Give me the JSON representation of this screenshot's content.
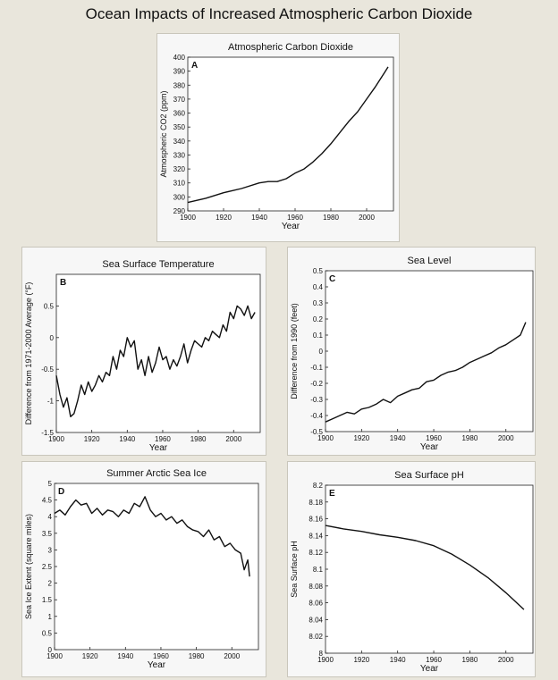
{
  "page_title": "Ocean Impacts of Increased Atmospheric Carbon Dioxide",
  "colors": {
    "background": "#e9e6dc",
    "panel": "#f7f7f7",
    "plot": "#ffffff",
    "line": "#111111"
  },
  "chart_data": [
    {
      "id": "A",
      "type": "line",
      "title": "Atmospheric Carbon Dioxide",
      "xlabel": "Year",
      "ylabel": "Atmospheric CO2 (ppm)",
      "xlim": [
        1900,
        2015
      ],
      "ylim": [
        290,
        400
      ],
      "xticks": [
        1900,
        1920,
        1940,
        1960,
        1980,
        2000
      ],
      "yticks": [
        290,
        300,
        310,
        320,
        330,
        340,
        350,
        360,
        370,
        380,
        390,
        400
      ],
      "series": [
        {
          "x": [
            1900,
            1910,
            1920,
            1930,
            1940,
            1945,
            1950,
            1955,
            1960,
            1965,
            1970,
            1975,
            1980,
            1985,
            1990,
            1995,
            2000,
            2005,
            2010,
            2012
          ],
          "values": [
            296,
            299,
            303,
            306,
            310,
            311,
            311,
            313,
            317,
            320,
            325,
            331,
            338,
            346,
            354,
            361,
            370,
            379,
            389,
            393
          ]
        }
      ]
    },
    {
      "id": "B",
      "type": "line",
      "title": "Sea Surface Temperature",
      "xlabel": "Year",
      "ylabel": "Difference from 1971-2000 Average (°F)",
      "xlim": [
        1900,
        2015
      ],
      "ylim": [
        -1.5,
        1.0
      ],
      "xticks": [
        1900,
        1920,
        1940,
        1960,
        1980,
        2000
      ],
      "yticks": [
        -1.5,
        -1,
        -0.5,
        0,
        0.5
      ],
      "series": [
        {
          "x": [
            1900,
            1902,
            1904,
            1906,
            1908,
            1910,
            1912,
            1914,
            1916,
            1918,
            1920,
            1922,
            1924,
            1926,
            1928,
            1930,
            1932,
            1934,
            1936,
            1938,
            1940,
            1942,
            1944,
            1946,
            1948,
            1950,
            1952,
            1954,
            1956,
            1958,
            1960,
            1962,
            1964,
            1966,
            1968,
            1970,
            1972,
            1974,
            1976,
            1978,
            1980,
            1982,
            1984,
            1986,
            1988,
            1990,
            1992,
            1994,
            1996,
            1998,
            2000,
            2002,
            2004,
            2006,
            2008,
            2010,
            2012
          ],
          "values": [
            -0.6,
            -0.9,
            -1.1,
            -0.95,
            -1.25,
            -1.2,
            -1.0,
            -0.75,
            -0.9,
            -0.7,
            -0.85,
            -0.75,
            -0.6,
            -0.7,
            -0.55,
            -0.6,
            -0.3,
            -0.5,
            -0.2,
            -0.3,
            0.0,
            -0.15,
            -0.05,
            -0.5,
            -0.35,
            -0.6,
            -0.3,
            -0.55,
            -0.4,
            -0.15,
            -0.35,
            -0.3,
            -0.5,
            -0.35,
            -0.45,
            -0.3,
            -0.1,
            -0.4,
            -0.2,
            -0.05,
            -0.1,
            -0.15,
            0.0,
            -0.05,
            0.1,
            0.05,
            0.0,
            0.2,
            0.1,
            0.4,
            0.3,
            0.5,
            0.45,
            0.35,
            0.5,
            0.3,
            0.4
          ]
        }
      ]
    },
    {
      "id": "C",
      "type": "line",
      "title": "Sea Level",
      "xlabel": "Year",
      "ylabel": "Difference from 1990 (feet)",
      "xlim": [
        1900,
        2015
      ],
      "ylim": [
        -0.5,
        0.5
      ],
      "xticks": [
        1900,
        1920,
        1940,
        1960,
        1980,
        2000
      ],
      "yticks": [
        -0.5,
        -0.4,
        -0.3,
        -0.2,
        -0.1,
        0,
        0.1,
        0.2,
        0.3,
        0.4,
        0.5
      ],
      "series": [
        {
          "x": [
            1900,
            1904,
            1908,
            1912,
            1916,
            1920,
            1924,
            1928,
            1932,
            1936,
            1940,
            1944,
            1948,
            1952,
            1956,
            1960,
            1964,
            1968,
            1972,
            1976,
            1980,
            1984,
            1988,
            1992,
            1996,
            2000,
            2004,
            2008,
            2011
          ],
          "values": [
            -0.44,
            -0.42,
            -0.4,
            -0.38,
            -0.39,
            -0.36,
            -0.35,
            -0.33,
            -0.3,
            -0.32,
            -0.28,
            -0.26,
            -0.24,
            -0.23,
            -0.19,
            -0.18,
            -0.15,
            -0.13,
            -0.12,
            -0.1,
            -0.07,
            -0.05,
            -0.03,
            -0.01,
            0.02,
            0.04,
            0.07,
            0.1,
            0.18
          ]
        }
      ]
    },
    {
      "id": "D",
      "type": "line",
      "title": "Summer Arctic Sea Ice",
      "xlabel": "Year",
      "ylabel": "Sea Ice Extent (square miles)",
      "xlim": [
        1900,
        2015
      ],
      "ylim": [
        0,
        5.0
      ],
      "xticks": [
        1900,
        1920,
        1940,
        1960,
        1980,
        2000
      ],
      "yticks": [
        0,
        0.5,
        1.0,
        1.5,
        2.0,
        2.5,
        3.0,
        3.5,
        4.0,
        4.5,
        5.0
      ],
      "series": [
        {
          "x": [
            1900,
            1903,
            1906,
            1909,
            1912,
            1915,
            1918,
            1921,
            1924,
            1927,
            1930,
            1933,
            1936,
            1939,
            1942,
            1945,
            1948,
            1951,
            1954,
            1957,
            1960,
            1963,
            1966,
            1969,
            1972,
            1975,
            1978,
            1981,
            1984,
            1987,
            1990,
            1993,
            1996,
            1999,
            2002,
            2005,
            2007,
            2009,
            2010
          ],
          "values": [
            4.1,
            4.2,
            4.05,
            4.3,
            4.5,
            4.35,
            4.4,
            4.1,
            4.25,
            4.05,
            4.2,
            4.15,
            4.0,
            4.2,
            4.1,
            4.4,
            4.3,
            4.6,
            4.2,
            4.0,
            4.1,
            3.9,
            4.0,
            3.8,
            3.9,
            3.7,
            3.6,
            3.55,
            3.4,
            3.6,
            3.3,
            3.4,
            3.1,
            3.2,
            3.0,
            2.9,
            2.4,
            2.7,
            2.2
          ]
        }
      ]
    },
    {
      "id": "E",
      "type": "line",
      "title": "Sea Surface pH",
      "xlabel": "Year",
      "ylabel": "Sea Surface pH",
      "xlim": [
        1900,
        2015
      ],
      "ylim": [
        8.0,
        8.2
      ],
      "xticks": [
        1900,
        1920,
        1940,
        1960,
        1980,
        2000
      ],
      "yticks": [
        8,
        8.02,
        8.04,
        8.06,
        8.08,
        8.1,
        8.12,
        8.14,
        8.16,
        8.18,
        8.2
      ],
      "series": [
        {
          "x": [
            1900,
            1910,
            1920,
            1930,
            1940,
            1950,
            1960,
            1970,
            1980,
            1990,
            2000,
            2010
          ],
          "values": [
            8.152,
            8.148,
            8.145,
            8.141,
            8.138,
            8.134,
            8.128,
            8.118,
            8.105,
            8.09,
            8.072,
            8.052
          ]
        }
      ]
    }
  ]
}
